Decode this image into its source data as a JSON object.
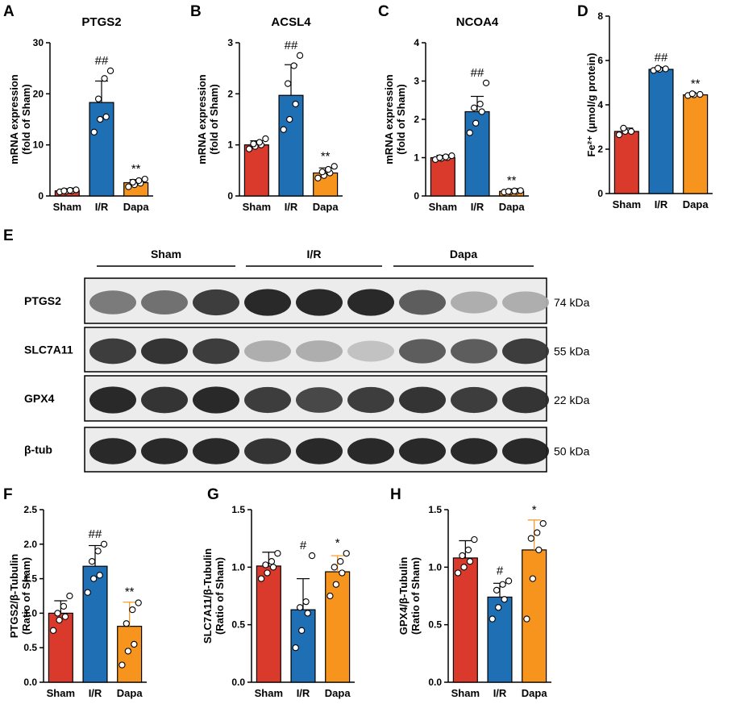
{
  "colors": {
    "sham": "#d93a2b",
    "ir": "#1f6fb4",
    "dapa": "#f7941d"
  },
  "chart_data": [
    {
      "id": "A",
      "panel": "A",
      "type": "bar",
      "title": "PTGS2",
      "ylabel": [
        "mRNA expression",
        "(fold of Sham)"
      ],
      "categories": [
        "Sham",
        "I/R",
        "Dapa"
      ],
      "ylim": [
        0,
        30
      ],
      "yticks": [
        "0",
        "10",
        "20",
        "30"
      ],
      "ytick_values": [
        0,
        10,
        20,
        30
      ],
      "series": [
        {
          "values": [
            1.0,
            18.3,
            2.6
          ],
          "errors": [
            0.3,
            4.2,
            0.6
          ]
        }
      ],
      "points": [
        [
          0.8,
          0.9,
          1.0,
          1.0,
          1.1,
          1.2
        ],
        [
          12.5,
          15.0,
          15.5,
          19.0,
          23.0,
          24.5
        ],
        [
          1.8,
          2.2,
          2.5,
          2.7,
          3.0,
          3.3
        ]
      ],
      "annotations": [
        "",
        "##",
        "**"
      ]
    },
    {
      "id": "B",
      "panel": "B",
      "type": "bar",
      "title": "ACSL4",
      "ylabel": [
        "mRNA expression",
        "(fold of Sham)"
      ],
      "categories": [
        "Sham",
        "I/R",
        "Dapa"
      ],
      "ylim": [
        0,
        3
      ],
      "yticks": [
        "0",
        "1",
        "2",
        "3"
      ],
      "ytick_values": [
        0,
        1,
        2,
        3
      ],
      "series": [
        {
          "values": [
            1.0,
            1.97,
            0.45
          ],
          "errors": [
            0.08,
            0.6,
            0.1
          ]
        }
      ],
      "points": [
        [
          0.92,
          0.97,
          1.0,
          1.02,
          1.05,
          1.12
        ],
        [
          1.3,
          1.5,
          1.8,
          2.2,
          2.55,
          2.75
        ],
        [
          0.35,
          0.4,
          0.45,
          0.47,
          0.52,
          0.58
        ]
      ],
      "annotations": [
        "",
        "##",
        "**"
      ]
    },
    {
      "id": "C",
      "panel": "C",
      "type": "bar",
      "title": "NCOA4",
      "ylabel": [
        "mRNA expression",
        "(fold of Sham)"
      ],
      "categories": [
        "Sham",
        "I/R",
        "Dapa"
      ],
      "ylim": [
        0,
        4
      ],
      "yticks": [
        "0",
        "1",
        "2",
        "3",
        "4"
      ],
      "ytick_values": [
        0,
        1,
        2,
        3,
        4
      ],
      "series": [
        {
          "values": [
            1.0,
            2.2,
            0.12
          ],
          "errors": [
            0.06,
            0.4,
            0.02
          ]
        }
      ],
      "points": [
        [
          0.95,
          0.98,
          1.0,
          1.0,
          1.02,
          1.05
        ],
        [
          1.65,
          1.9,
          2.2,
          2.3,
          2.4,
          2.95
        ],
        [
          0.1,
          0.11,
          0.12,
          0.12,
          0.13,
          0.14
        ]
      ],
      "annotations": [
        "",
        "##",
        "**"
      ]
    },
    {
      "id": "D",
      "panel": "D",
      "type": "bar",
      "title": "",
      "ylabel": [
        "Fe²⁺ (μmol/g protein)"
      ],
      "categories": [
        "Sham",
        "I/R",
        "Dapa"
      ],
      "ylim": [
        0,
        8
      ],
      "yticks": [
        "0",
        "2",
        "4",
        "6",
        "8"
      ],
      "ytick_values": [
        0,
        2,
        4,
        6,
        8
      ],
      "series": [
        {
          "values": [
            2.8,
            5.6,
            4.45
          ],
          "errors": [
            0.15,
            0.08,
            0.05
          ]
        }
      ],
      "points": [
        [
          2.65,
          2.8,
          2.8,
          2.95
        ],
        [
          5.55,
          5.6,
          5.62,
          5.65
        ],
        [
          4.42,
          4.45,
          4.47,
          4.5
        ]
      ],
      "annotations": [
        "",
        "##",
        "**"
      ]
    },
    {
      "id": "F",
      "panel": "F",
      "type": "bar",
      "title": "",
      "ylabel": [
        "PTGS2/β-Tubulin",
        "(Ratio of Sham)"
      ],
      "categories": [
        "Sham",
        "I/R",
        "Dapa"
      ],
      "ylim": [
        0,
        2.5
      ],
      "yticks": [
        "0.0",
        "0.5",
        "1.0",
        "1.5",
        "2.0",
        "2.5"
      ],
      "ytick_values": [
        0,
        0.5,
        1,
        1.5,
        2,
        2.5
      ],
      "series": [
        {
          "values": [
            1.0,
            1.68,
            0.81
          ],
          "errors": [
            0.18,
            0.3,
            0.35
          ]
        }
      ],
      "points": [
        [
          0.75,
          0.9,
          0.95,
          1.0,
          1.1,
          1.25
        ],
        [
          1.3,
          1.5,
          1.55,
          1.75,
          1.9,
          2.0
        ],
        [
          0.25,
          0.45,
          0.55,
          0.85,
          1.05,
          1.15
        ]
      ],
      "annotations": [
        "",
        "##",
        "**"
      ]
    },
    {
      "id": "G",
      "panel": "G",
      "type": "bar",
      "title": "",
      "ylabel": [
        "SLC7A11/β-Tubulin",
        "(Ratio of Sham)"
      ],
      "categories": [
        "Sham",
        "I/R",
        "Dapa"
      ],
      "ylim": [
        0,
        1.5
      ],
      "yticks": [
        "0.0",
        "0.5",
        "1.0",
        "1.5"
      ],
      "ytick_values": [
        0,
        0.5,
        1,
        1.5
      ],
      "series": [
        {
          "values": [
            1.01,
            0.63,
            0.96
          ],
          "errors": [
            0.12,
            0.27,
            0.14
          ]
        }
      ],
      "points": [
        [
          0.9,
          0.95,
          1.0,
          1.02,
          1.05,
          1.12
        ],
        [
          0.3,
          0.45,
          0.6,
          0.65,
          0.7,
          1.1
        ],
        [
          0.75,
          0.85,
          0.95,
          1.0,
          1.05,
          1.12
        ]
      ],
      "annotations": [
        "",
        "#",
        "*"
      ]
    },
    {
      "id": "H",
      "panel": "H",
      "type": "bar",
      "title": "",
      "ylabel": [
        "GPX4/β-Tubulin",
        "(Ratio of Sham)"
      ],
      "categories": [
        "Sham",
        "I/R",
        "Dapa"
      ],
      "ylim": [
        0,
        1.5
      ],
      "yticks": [
        "0.0",
        "0.5",
        "1.0",
        "1.5"
      ],
      "ytick_values": [
        0,
        0.5,
        1,
        1.5
      ],
      "series": [
        {
          "values": [
            1.08,
            0.74,
            1.15
          ],
          "errors": [
            0.15,
            0.12,
            0.26
          ]
        }
      ],
      "points": [
        [
          0.95,
          1.0,
          1.05,
          1.1,
          1.15,
          1.24
        ],
        [
          0.55,
          0.65,
          0.72,
          0.8,
          0.85,
          0.88
        ],
        [
          0.55,
          0.9,
          1.15,
          1.25,
          1.3,
          1.38
        ]
      ],
      "annotations": [
        "",
        "#",
        "*"
      ]
    }
  ],
  "western_blot": {
    "panel": "E",
    "groups": [
      "Sham",
      "I/R",
      "Dapa"
    ],
    "rows": [
      {
        "label": "PTGS2",
        "kda": "74 kDa",
        "intensity": [
          0.55,
          0.6,
          0.85,
          0.95,
          0.95,
          0.95,
          0.7,
          0.3,
          0.3
        ]
      },
      {
        "label": "SLC7A11",
        "kda": "55 kDa",
        "intensity": [
          0.85,
          0.9,
          0.85,
          0.3,
          0.3,
          0.2,
          0.7,
          0.7,
          0.85
        ]
      },
      {
        "label": "GPX4",
        "kda": "22 kDa",
        "intensity": [
          0.95,
          0.9,
          0.95,
          0.85,
          0.8,
          0.85,
          0.9,
          0.85,
          0.9
        ]
      },
      {
        "label": "β-tub",
        "kda": "50 kDa",
        "intensity": [
          0.95,
          0.95,
          0.95,
          0.9,
          0.95,
          0.95,
          0.95,
          0.95,
          0.95
        ]
      }
    ]
  }
}
